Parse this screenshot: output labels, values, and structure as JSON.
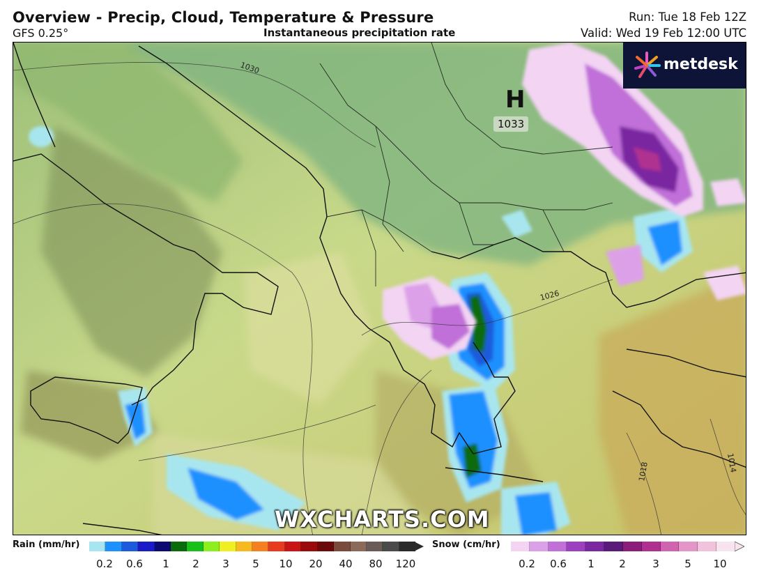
{
  "header": {
    "title": "Overview - Precip, Cloud, Temperature & Pressure",
    "model": "GFS 0.25°",
    "subtitle": "Instantaneous precipitation rate",
    "run": "Run: Tue 18 Feb 12Z",
    "valid": "Valid: Wed 19 Feb 12:00 UTC"
  },
  "map": {
    "brand": "metdesk",
    "watermark": "WXCHARTS.COM",
    "high_pressure": {
      "symbol": "H",
      "value": "1033"
    },
    "isobar_labels": [
      "1030",
      "1026",
      "1018",
      "1014"
    ]
  },
  "legend": {
    "rain": {
      "label": "Rain (mm/hr)",
      "ticks": [
        "0.2",
        "0.6",
        "1",
        "2",
        "3",
        "5",
        "10",
        "20",
        "40",
        "80",
        "120"
      ],
      "colors": [
        "#a8e6ef",
        "#1e90ff",
        "#1c5bdc",
        "#1a1ac8",
        "#0a0a70",
        "#0a6b0a",
        "#18c018",
        "#8cef1e",
        "#f0f020",
        "#f7b820",
        "#f58022",
        "#e83a1e",
        "#c81414",
        "#9a0a0a",
        "#6a0a0a",
        "#7a4a3a",
        "#8c6a5a",
        "#6a5a58",
        "#4a4a4a",
        "#2a2a2a"
      ]
    },
    "snow": {
      "label": "Snow (cm/hr)",
      "ticks": [
        "0.2",
        "0.6",
        "1",
        "2",
        "3",
        "5",
        "10"
      ],
      "colors": [
        "#f3d4f3",
        "#dca0e8",
        "#c070d8",
        "#9c40c0",
        "#7a28a0",
        "#5a1a7a",
        "#8a1e7a",
        "#b03090",
        "#d064b0",
        "#e496c8",
        "#f0c2dc",
        "#f8e4ee"
      ]
    }
  }
}
